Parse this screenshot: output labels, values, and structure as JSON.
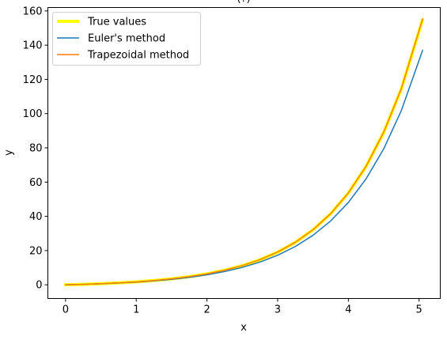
{
  "chart_data": {
    "type": "line",
    "title": "(?)",
    "xlabel": "x",
    "ylabel": "y",
    "xlim": [
      -0.25,
      5.3
    ],
    "ylim": [
      -8,
      162
    ],
    "xticks": [
      0,
      1,
      2,
      3,
      4,
      5
    ],
    "yticks": [
      0,
      20,
      40,
      60,
      80,
      100,
      120,
      140,
      160
    ],
    "grid": false,
    "legend_position": "upper-left",
    "x": [
      0,
      0.25,
      0.5,
      0.75,
      1.0,
      1.25,
      1.5,
      1.75,
      2.0,
      2.25,
      2.5,
      2.75,
      3.0,
      3.25,
      3.5,
      3.75,
      4.0,
      4.25,
      4.5,
      4.75,
      5.05
    ],
    "series": [
      {
        "name": "True values",
        "color": "#ffff00",
        "y": [
          0.0,
          0.28,
          0.65,
          1.12,
          1.72,
          2.49,
          3.48,
          4.75,
          6.39,
          8.49,
          11.18,
          14.64,
          19.09,
          24.79,
          32.12,
          41.52,
          53.6,
          69.11,
          89.02,
          114.58,
          155.0
        ]
      },
      {
        "name": "Euler's method",
        "color": "#1f77b4",
        "y": [
          0.0,
          0.26,
          0.6,
          1.04,
          1.6,
          2.31,
          3.21,
          4.37,
          5.85,
          7.74,
          10.16,
          13.27,
          17.25,
          22.37,
          28.93,
          37.32,
          48.1,
          61.85,
          79.42,
          101.86,
          137.0
        ]
      },
      {
        "name": "Trapezoidal method",
        "color": "#ff7f0e",
        "y": [
          0.0,
          0.28,
          0.65,
          1.12,
          1.72,
          2.49,
          3.48,
          4.76,
          6.4,
          8.5,
          11.2,
          14.66,
          19.11,
          24.82,
          32.16,
          41.57,
          53.67,
          69.2,
          89.14,
          114.74,
          155.3
        ]
      }
    ]
  }
}
